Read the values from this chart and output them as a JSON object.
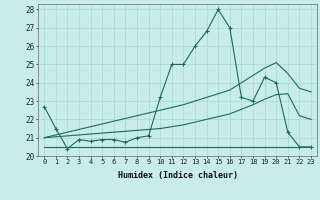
{
  "xlabel": "Humidex (Indice chaleur)",
  "bg_color": "#c8ecea",
  "line_color": "#1a6b5e",
  "grid_color": "#a8d8d4",
  "xlim": [
    -0.5,
    23.5
  ],
  "ylim": [
    20,
    28.3
  ],
  "yticks": [
    20,
    21,
    22,
    23,
    24,
    25,
    26,
    27,
    28
  ],
  "xticks": [
    0,
    1,
    2,
    3,
    4,
    5,
    6,
    7,
    8,
    9,
    10,
    11,
    12,
    13,
    14,
    15,
    16,
    17,
    18,
    19,
    20,
    21,
    22,
    23
  ],
  "line1_x": [
    0,
    1,
    2,
    3,
    4,
    5,
    6,
    7,
    8,
    9,
    10,
    11,
    12,
    13,
    14,
    15,
    16,
    17,
    18,
    19,
    20,
    21,
    22,
    23
  ],
  "line1_y": [
    22.7,
    21.5,
    20.4,
    20.9,
    20.8,
    20.9,
    20.9,
    20.75,
    21.0,
    21.1,
    23.2,
    25.0,
    25.0,
    26.0,
    26.8,
    28.0,
    27.0,
    23.2,
    23.0,
    24.3,
    24.0,
    21.3,
    20.5,
    20.5
  ],
  "line2_x": [
    0,
    1,
    2,
    3,
    4,
    5,
    6,
    7,
    8,
    9,
    10,
    11,
    12,
    13,
    14,
    15,
    16,
    17,
    18,
    19,
    20,
    21,
    22,
    23
  ],
  "line2_y": [
    20.5,
    20.5,
    20.5,
    20.5,
    20.5,
    20.5,
    20.5,
    20.5,
    20.5,
    20.5,
    20.5,
    20.5,
    20.5,
    20.5,
    20.5,
    20.5,
    20.5,
    20.5,
    20.5,
    20.5,
    20.5,
    20.5,
    20.5,
    20.5
  ],
  "line3_x": [
    0,
    1,
    2,
    3,
    4,
    5,
    6,
    7,
    8,
    9,
    10,
    11,
    12,
    13,
    14,
    15,
    16,
    17,
    18,
    19,
    20,
    21,
    22,
    23
  ],
  "line3_y": [
    21.0,
    21.15,
    21.3,
    21.45,
    21.6,
    21.75,
    21.9,
    22.05,
    22.2,
    22.35,
    22.5,
    22.65,
    22.8,
    23.0,
    23.2,
    23.4,
    23.6,
    24.0,
    24.4,
    24.8,
    25.1,
    24.5,
    23.7,
    23.5
  ],
  "line4_x": [
    0,
    1,
    2,
    3,
    4,
    5,
    6,
    7,
    8,
    9,
    10,
    11,
    12,
    13,
    14,
    15,
    16,
    17,
    18,
    19,
    20,
    21,
    22,
    23
  ],
  "line4_y": [
    21.0,
    21.05,
    21.1,
    21.15,
    21.2,
    21.25,
    21.3,
    21.35,
    21.4,
    21.45,
    21.5,
    21.6,
    21.7,
    21.85,
    22.0,
    22.15,
    22.3,
    22.55,
    22.8,
    23.1,
    23.35,
    23.4,
    22.2,
    22.0
  ]
}
